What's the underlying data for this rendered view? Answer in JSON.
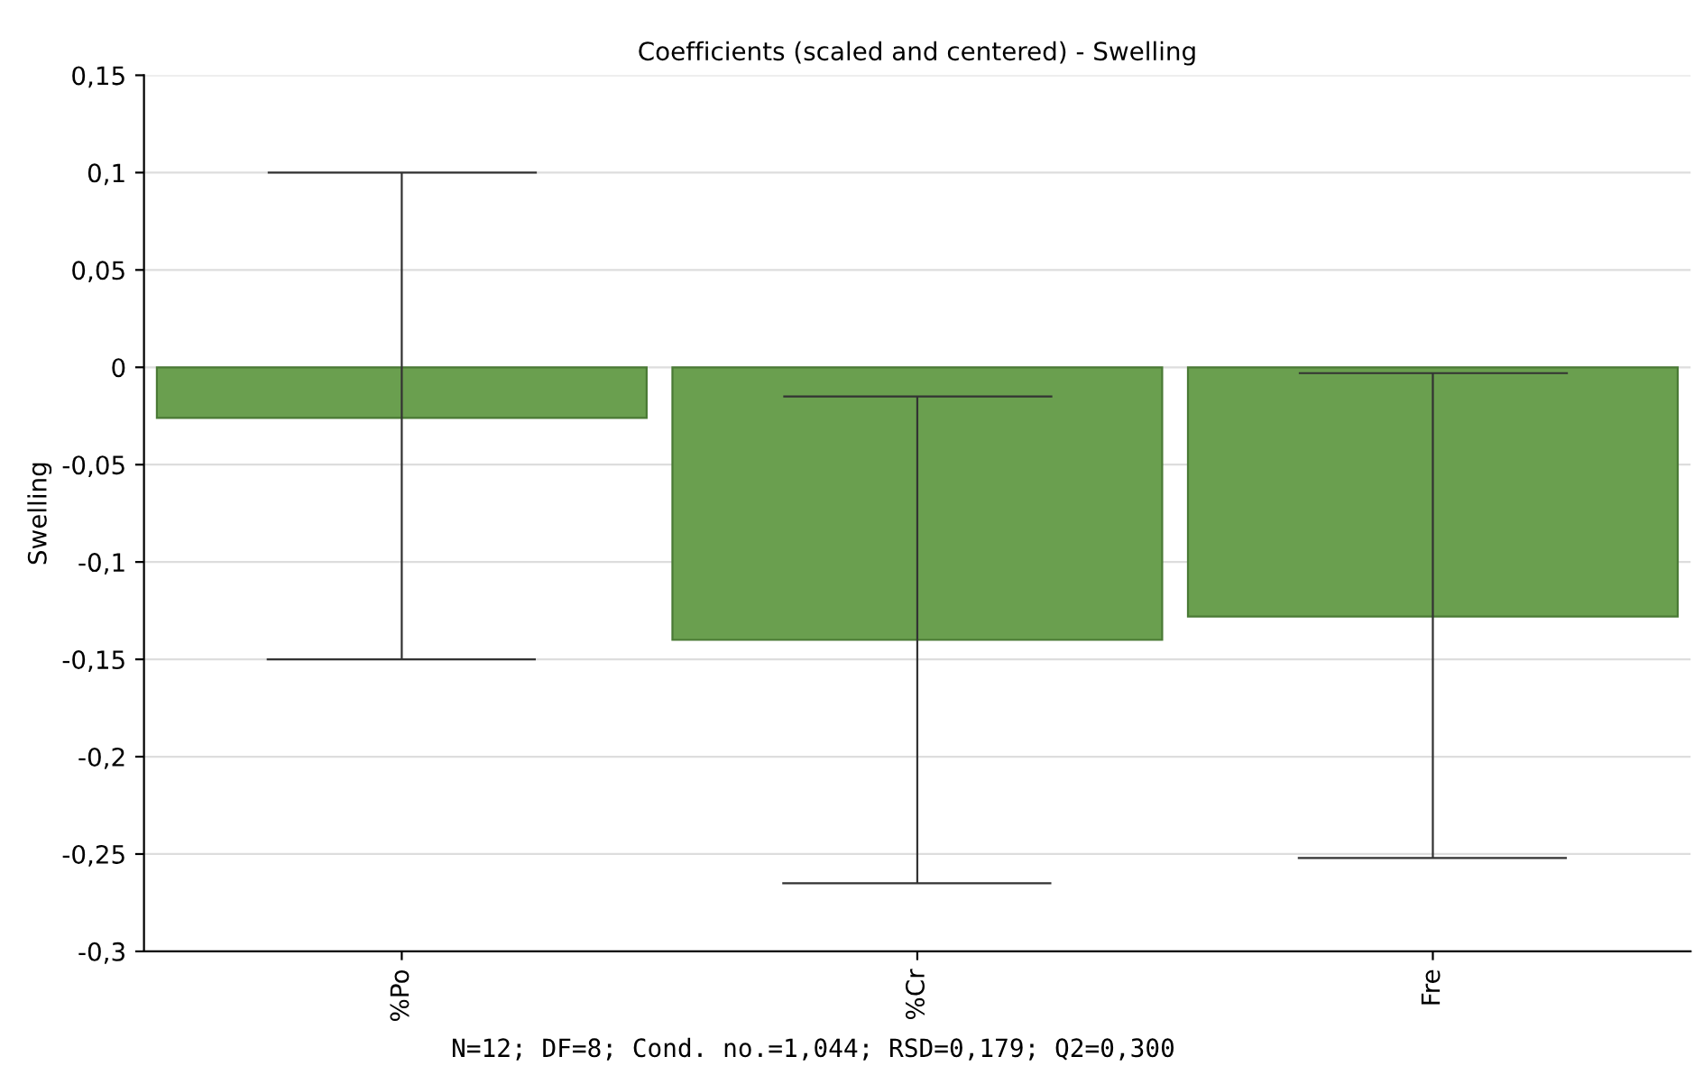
{
  "chart_data": {
    "type": "bar",
    "title": "Coefficients (scaled and centered) - Swelling",
    "ylabel": "Swelling",
    "categories": [
      "%Po",
      "%Cr",
      "Fre"
    ],
    "values": [
      -0.026,
      -0.14,
      -0.128
    ],
    "errors": [
      [
        -0.15,
        0.1
      ],
      [
        -0.265,
        -0.015
      ],
      [
        -0.252,
        -0.003
      ]
    ],
    "color": "#6a9f4f",
    "ylim": [
      -0.3,
      0.15
    ],
    "yticks": [
      {
        "value": -0.3,
        "label": "-0,3"
      },
      {
        "value": -0.25,
        "label": "-0,25"
      },
      {
        "value": -0.2,
        "label": "-0,2"
      },
      {
        "value": -0.15,
        "label": "-0,15"
      },
      {
        "value": -0.1,
        "label": "-0,1"
      },
      {
        "value": -0.05,
        "label": "-0,05"
      },
      {
        "value": 0,
        "label": "0"
      },
      {
        "value": 0.05,
        "label": "0,05"
      },
      {
        "value": 0.1,
        "label": "0,1"
      },
      {
        "value": 0.15,
        "label": "0,15"
      }
    ],
    "grid": "y",
    "annotations": [
      "N=12; DF=8; Cond. no.=1,044; RSD=0,179; Q2=0,300"
    ]
  }
}
